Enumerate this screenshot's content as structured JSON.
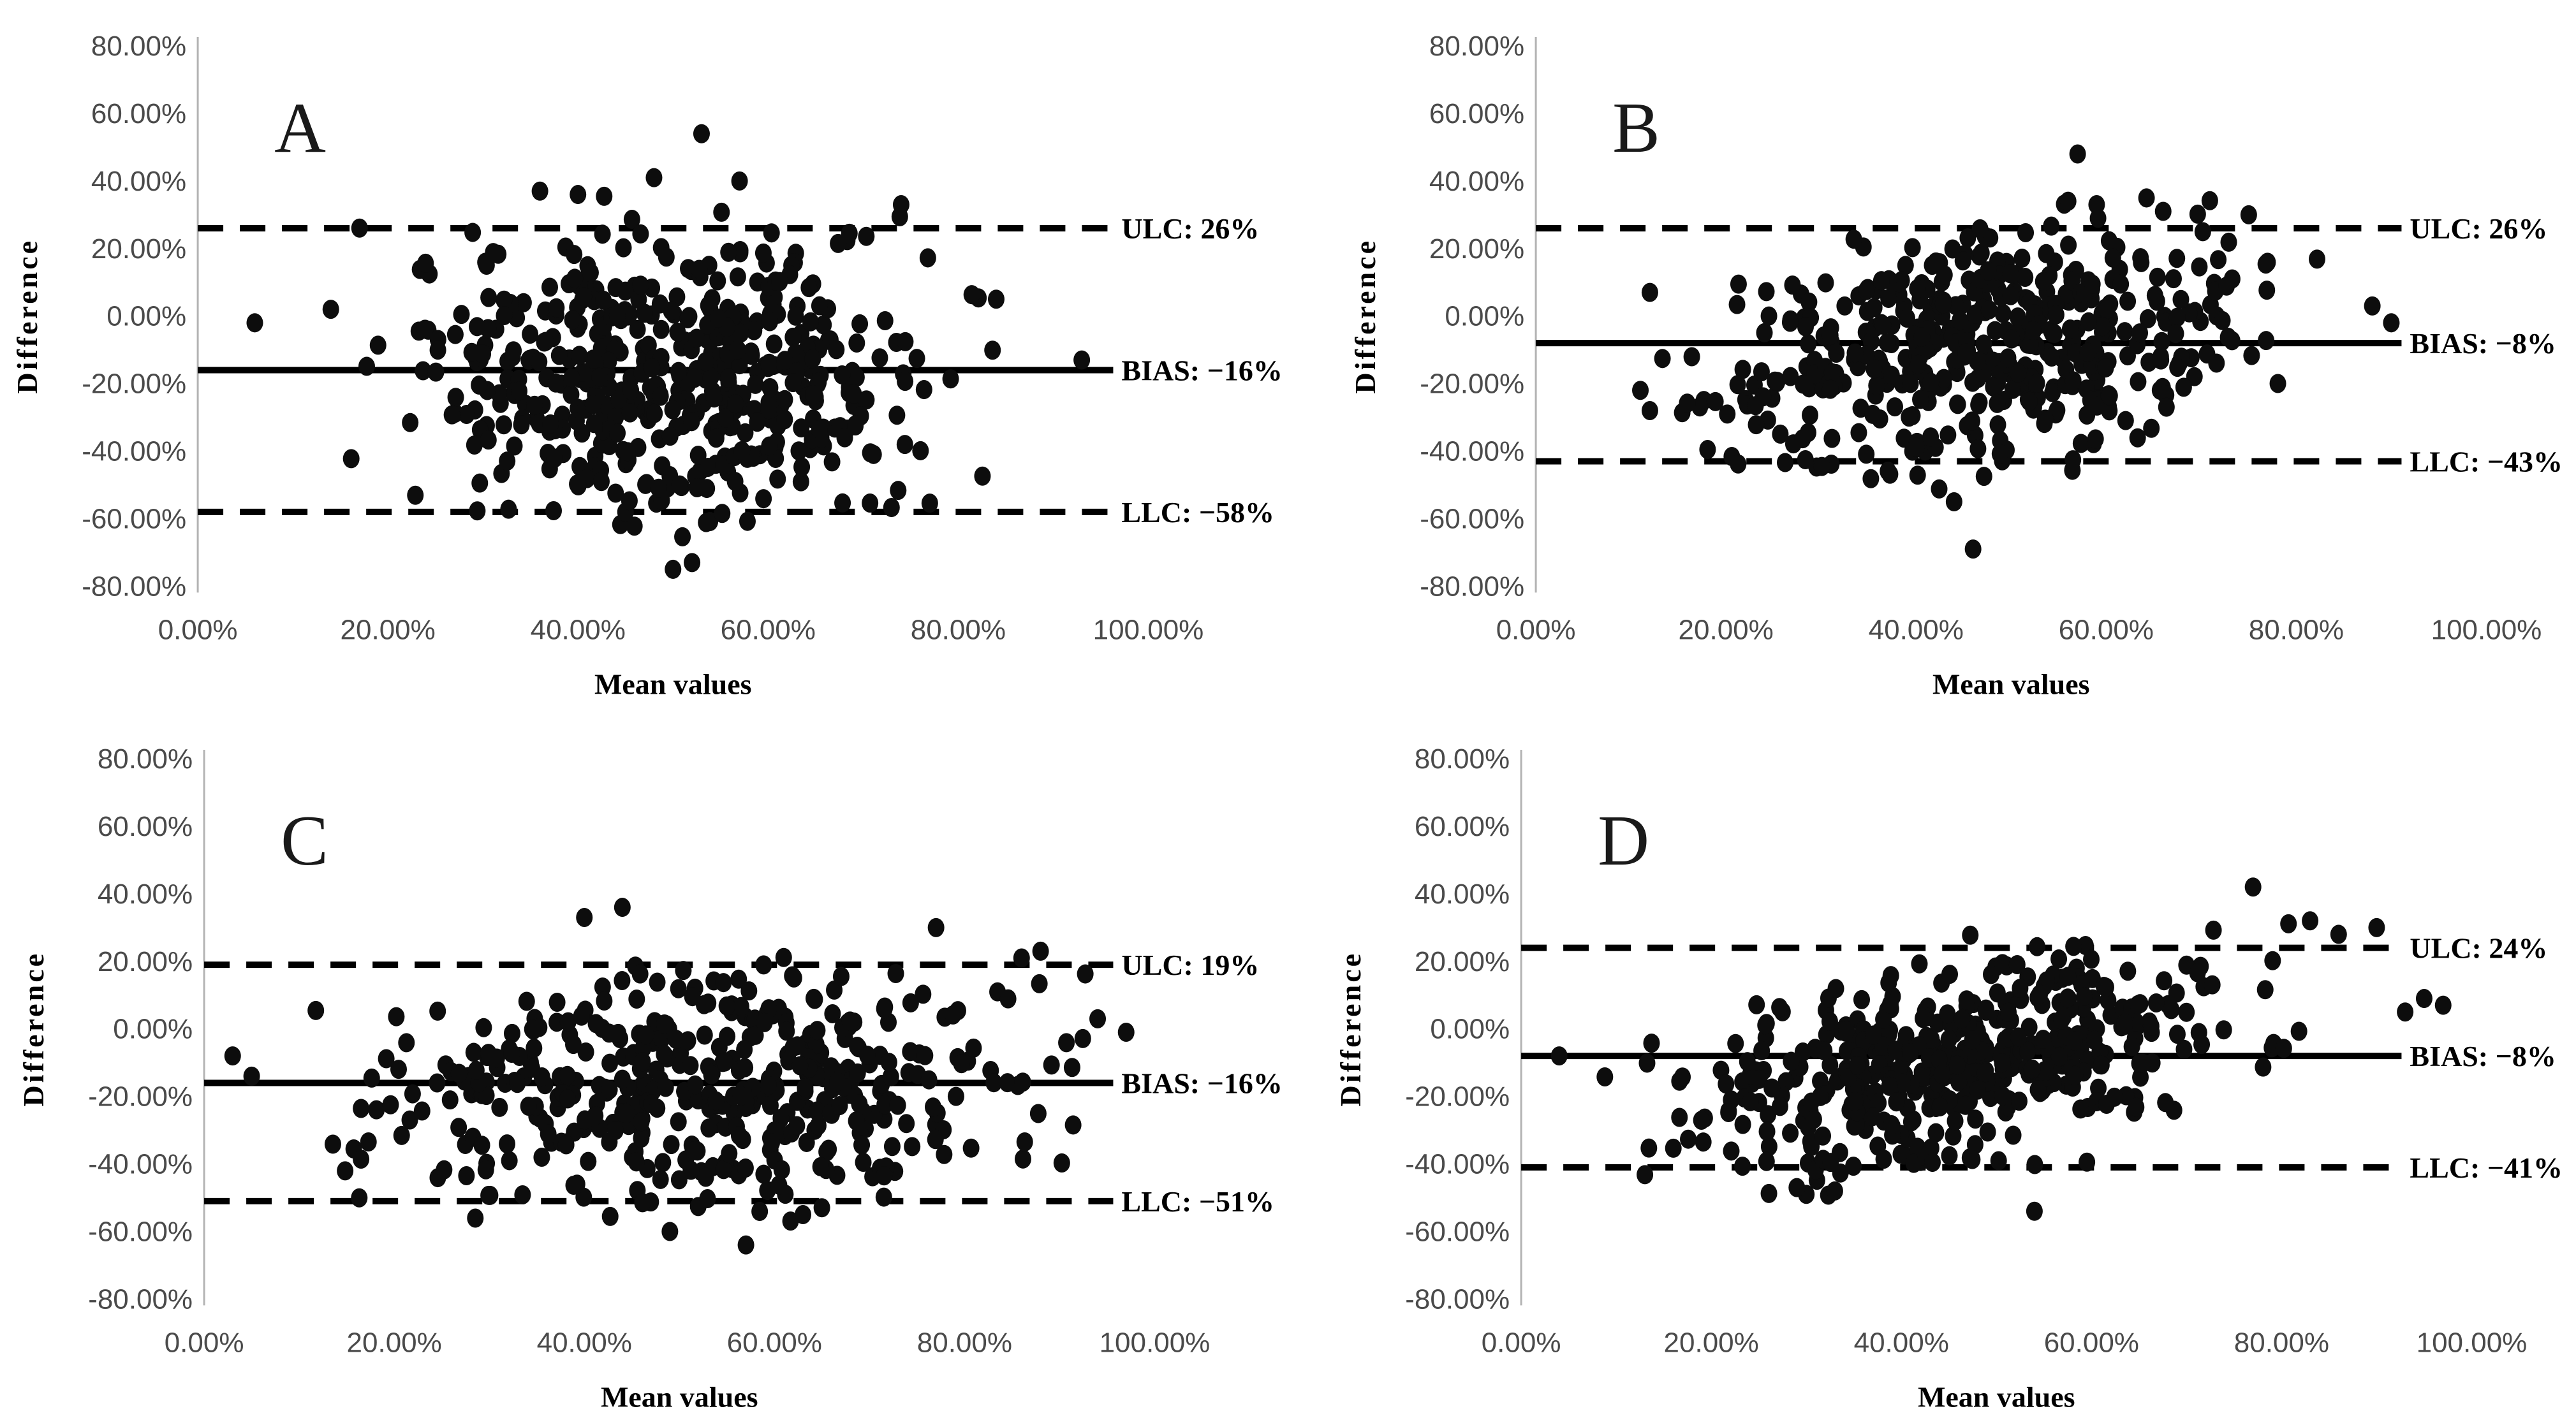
{
  "figure": {
    "kind": "bland-altman-four-panel",
    "background": "#ffffff",
    "colors": {
      "dots": "#0d0d0d",
      "agreement_lines": "#000000",
      "axis_line": "#b3b3b3",
      "tick_labels": "#4a4a4a",
      "axis_titles": "#000000",
      "panel_letter": "#1a1a1a"
    }
  },
  "axis": {
    "y_label": "Difference",
    "x_label": "Mean values",
    "x_range": [
      0,
      100
    ],
    "y_range": [
      -80,
      80
    ],
    "y_ticks": [
      {
        "value": 80,
        "label": "80.00%"
      },
      {
        "value": 60,
        "label": "60.00%"
      },
      {
        "value": 40,
        "label": "40.00%"
      },
      {
        "value": 20,
        "label": "20.00%"
      },
      {
        "value": 0,
        "label": "0.00%"
      },
      {
        "value": -20,
        "label": "-20.00%"
      },
      {
        "value": -40,
        "label": "-40.00%"
      },
      {
        "value": -60,
        "label": "-60.00%"
      },
      {
        "value": -80,
        "label": "-80.00%"
      }
    ],
    "x_ticks": [
      {
        "value": 0,
        "label": "0.00%"
      },
      {
        "value": 20,
        "label": "20.00%"
      },
      {
        "value": 40,
        "label": "40.00%"
      },
      {
        "value": 60,
        "label": "60.00%"
      },
      {
        "value": 80,
        "label": "80.00%"
      },
      {
        "value": 100,
        "label": "100.00%"
      }
    ]
  },
  "chart_data": [
    {
      "panel": "A",
      "type": "scatter",
      "x_label": "Mean values",
      "y_label": "Difference",
      "x_range": [
        0,
        100
      ],
      "y_range": [
        -80,
        80
      ],
      "lines": {
        "ulc": {
          "value": 26,
          "label": "ULC: 26%",
          "style": "dashed"
        },
        "bias": {
          "value": -16,
          "label": "BIAS: −16%",
          "style": "solid"
        },
        "llc": {
          "value": -58,
          "label": "LLC: −58%",
          "style": "dashed"
        }
      },
      "cloud": {
        "n": 520,
        "seed": 11,
        "center_x": 50,
        "center_y": -17,
        "sd_x": 13,
        "sd_y": 20,
        "corr": 0,
        "x_clip": [
          5,
          95
        ],
        "y_clip": [
          -66,
          42
        ]
      },
      "notable_points": [
        [
          53,
          54
        ],
        [
          50,
          -75
        ],
        [
          52,
          -73
        ],
        [
          6,
          -2
        ],
        [
          14,
          2
        ],
        [
          93,
          -13
        ],
        [
          74,
          33
        ],
        [
          84,
          5
        ],
        [
          57,
          40
        ],
        [
          48,
          41
        ],
        [
          36,
          37
        ],
        [
          40,
          36
        ]
      ]
    },
    {
      "panel": "B",
      "type": "scatter",
      "x_label": "Mean values",
      "y_label": "Difference",
      "x_range": [
        0,
        100
      ],
      "y_range": [
        -80,
        80
      ],
      "lines": {
        "ulc": {
          "value": 26,
          "label": "ULC: 26%",
          "style": "dashed"
        },
        "bias": {
          "value": -8,
          "label": "BIAS: −8%",
          "style": "solid"
        },
        "llc": {
          "value": -43,
          "label": "LLC: −43%",
          "style": "dashed"
        }
      },
      "cloud": {
        "n": 470,
        "seed": 22,
        "center_x": 47,
        "center_y": -9,
        "sd_x": 13,
        "sd_y": 16.5,
        "corr": 0.25,
        "x_clip": [
          11,
          90
        ],
        "y_clip": [
          -55,
          36
        ]
      },
      "notable_points": [
        [
          57,
          48
        ],
        [
          46,
          -69
        ],
        [
          44,
          -55
        ],
        [
          12,
          7
        ],
        [
          11,
          -22
        ],
        [
          90,
          -2
        ],
        [
          88,
          3
        ],
        [
          75,
          30
        ],
        [
          12,
          -28
        ],
        [
          56,
          34
        ],
        [
          59,
          33
        ],
        [
          66,
          31
        ]
      ]
    },
    {
      "panel": "C",
      "type": "scatter",
      "x_label": "Mean values",
      "y_label": "Difference",
      "x_range": [
        0,
        100
      ],
      "y_range": [
        -80,
        80
      ],
      "lines": {
        "ulc": {
          "value": 19,
          "label": "ULC: 19%",
          "style": "dashed"
        },
        "bias": {
          "value": -16,
          "label": "BIAS: −16%",
          "style": "solid"
        },
        "llc": {
          "value": -51,
          "label": "LLC: −51%",
          "style": "dashed"
        }
      },
      "cloud": {
        "n": 450,
        "seed": 33,
        "center_x": 52,
        "center_y": -17,
        "sd_x": 16.5,
        "sd_y": 17,
        "corr": 0.12,
        "x_clip": [
          4,
          99
        ],
        "y_clip": [
          -58,
          32
        ]
      },
      "notable_points": [
        [
          44,
          36
        ],
        [
          40,
          33
        ],
        [
          57,
          -64
        ],
        [
          49,
          -60
        ],
        [
          3,
          -8
        ],
        [
          97,
          -1
        ],
        [
          94,
          3
        ],
        [
          77,
          30
        ],
        [
          88,
          23
        ],
        [
          5,
          -14
        ],
        [
          86,
          21
        ],
        [
          63,
          -55
        ]
      ]
    },
    {
      "panel": "D",
      "type": "scatter",
      "x_label": "Mean values",
      "y_label": "Difference",
      "x_range": [
        0,
        100
      ],
      "y_range": [
        -80,
        80
      ],
      "lines": {
        "ulc": {
          "value": 24,
          "label": "ULC: 24%",
          "style": "dashed"
        },
        "bias": {
          "value": -8,
          "label": "BIAS: −8%",
          "style": "solid"
        },
        "llc": {
          "value": -41,
          "label": "LLC: −41%",
          "style": "dashed"
        }
      },
      "cloud": {
        "n": 470,
        "seed": 44,
        "center_x": 47,
        "center_y": -9,
        "sd_x": 14,
        "sd_y": 15.5,
        "corr": 0.45,
        "x_clip": [
          5,
          96
        ],
        "y_clip": [
          -50,
          34
        ]
      },
      "notable_points": [
        [
          77,
          42
        ],
        [
          54,
          -54
        ],
        [
          30,
          -49
        ],
        [
          33,
          -48
        ],
        [
          97,
          7
        ],
        [
          93,
          5
        ],
        [
          4,
          -8
        ],
        [
          83,
          32
        ],
        [
          86,
          28
        ],
        [
          95,
          9
        ],
        [
          90,
          30
        ],
        [
          29,
          -47
        ]
      ]
    }
  ]
}
